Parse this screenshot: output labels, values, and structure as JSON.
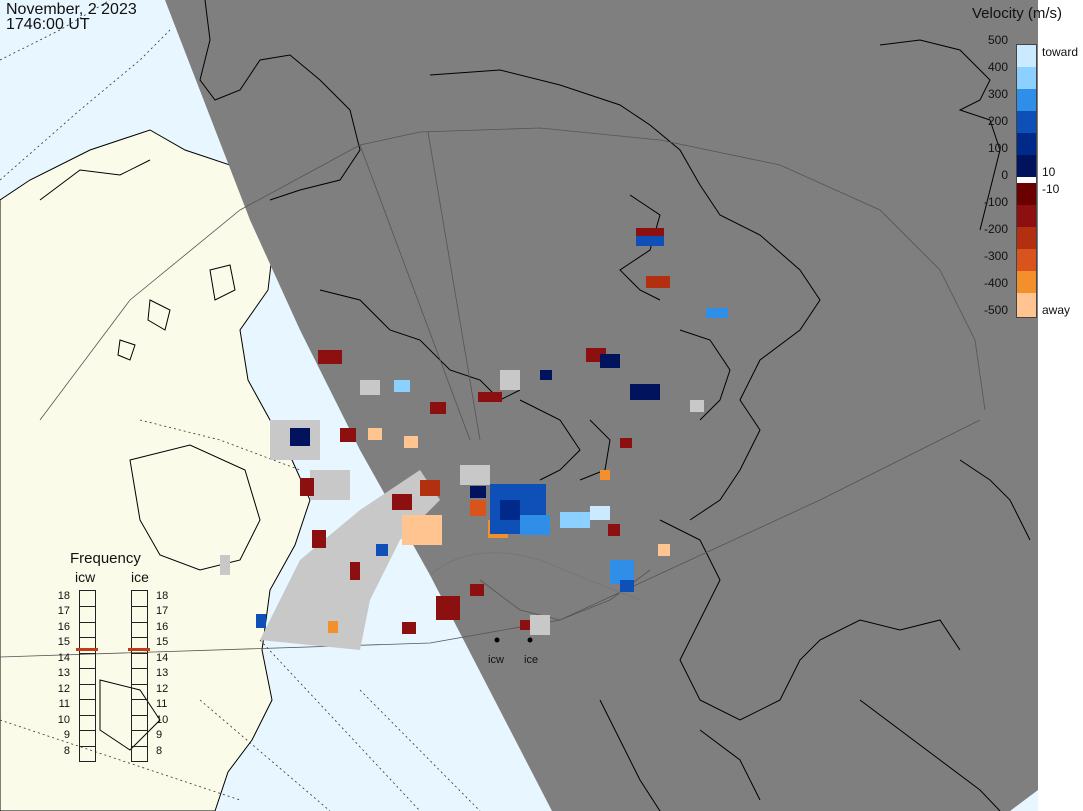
{
  "header": {
    "date": "November, 2 2023",
    "time": "1746:00 UT"
  },
  "colorbar": {
    "title": "Velocity (m/s)",
    "ticks": [
      "500",
      "400",
      "300",
      "200",
      "100",
      "0",
      "-100",
      "-200",
      "-300",
      "-400",
      "-500"
    ],
    "toward_label": "toward",
    "away_label": "away",
    "inner_pos": "10",
    "inner_neg": "-10",
    "toward_colors": [
      "#cbeaff",
      "#8cd0ff",
      "#2f8fe8",
      "#0f4fb8",
      "#002a8a",
      "#00135c"
    ],
    "away_colors": [
      "#6a0000",
      "#8c1010",
      "#b23010",
      "#d8541c",
      "#f4902c",
      "#ffc490"
    ]
  },
  "frequency": {
    "title": "Frequency",
    "columns": [
      {
        "label": "icw",
        "current": 15
      },
      {
        "label": "ice",
        "current": 15
      }
    ],
    "scale": [
      "18",
      "17",
      "16",
      "15",
      "14",
      "13",
      "12",
      "11",
      "10",
      "9",
      "8"
    ],
    "marker_color": "#c43b1a"
  },
  "stations": [
    {
      "label": "icw"
    },
    {
      "label": "ice"
    }
  ],
  "map_colors": {
    "night": "#7f7f7f",
    "day_ocean": "#e8f6ff",
    "day_land": "#fbfbea",
    "coast": "#000000",
    "grid": "#555555"
  }
}
